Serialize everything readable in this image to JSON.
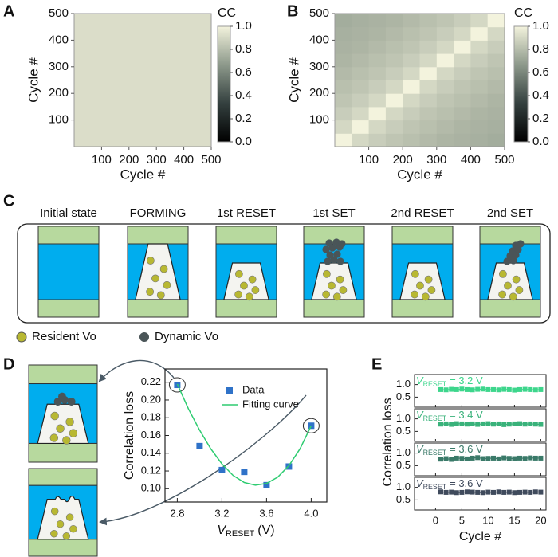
{
  "chart_data": [
    {
      "type": "heatmap",
      "panel": "A",
      "xlabel": "Cycle #",
      "ylabel": "Cycle #",
      "xlim": [
        0,
        500
      ],
      "ylim": [
        0,
        500
      ],
      "xticks": [
        100,
        200,
        300,
        400,
        500
      ],
      "yticks": [
        100,
        200,
        300,
        400,
        500
      ],
      "values": [
        [
          0.92
        ]
      ],
      "colormap": [
        "#000000",
        "#34403f",
        "#8d998b",
        "#f3f3dd"
      ],
      "colorbar": {
        "label": "CC",
        "lim": [
          0,
          1
        ],
        "ticks": [
          {
            "value": 0,
            "label": "0.0"
          },
          0.2,
          0.4,
          0.6,
          0.8,
          {
            "value": 1,
            "label": "1.0"
          }
        ]
      }
    },
    {
      "type": "heatmap",
      "panel": "B",
      "xlabel": "Cycle #",
      "ylabel": "Cycle #",
      "xlim": [
        0,
        500
      ],
      "ylim": [
        0,
        500
      ],
      "xticks": [
        100,
        200,
        300,
        400,
        500
      ],
      "yticks": [
        100,
        200,
        300,
        400,
        500
      ],
      "values": [
        [
          1.0,
          0.9,
          0.86,
          0.83,
          0.81,
          0.79,
          0.77,
          0.76,
          0.75,
          0.74
        ],
        [
          0.9,
          1.0,
          0.9,
          0.86,
          0.83,
          0.81,
          0.79,
          0.77,
          0.76,
          0.75
        ],
        [
          0.86,
          0.9,
          1.0,
          0.9,
          0.86,
          0.83,
          0.81,
          0.79,
          0.77,
          0.76
        ],
        [
          0.83,
          0.86,
          0.9,
          1.0,
          0.9,
          0.86,
          0.83,
          0.81,
          0.79,
          0.77
        ],
        [
          0.81,
          0.83,
          0.86,
          0.9,
          1.0,
          0.9,
          0.86,
          0.83,
          0.81,
          0.79
        ],
        [
          0.79,
          0.81,
          0.83,
          0.86,
          0.9,
          1.0,
          0.9,
          0.86,
          0.83,
          0.81
        ],
        [
          0.77,
          0.79,
          0.81,
          0.83,
          0.86,
          0.9,
          1.0,
          0.9,
          0.86,
          0.83
        ],
        [
          0.76,
          0.77,
          0.79,
          0.81,
          0.83,
          0.86,
          0.9,
          1.0,
          0.9,
          0.86
        ],
        [
          0.75,
          0.76,
          0.77,
          0.79,
          0.81,
          0.83,
          0.86,
          0.9,
          1.0,
          0.9
        ],
        [
          0.74,
          0.75,
          0.76,
          0.77,
          0.79,
          0.81,
          0.83,
          0.86,
          0.9,
          1.0
        ]
      ],
      "colormap": [
        "#000000",
        "#34403f",
        "#8d998b",
        "#f3f3dd"
      ],
      "colorbar": {
        "label": "CC",
        "lim": [
          0,
          1
        ],
        "ticks": [
          {
            "value": 0,
            "label": "0.0"
          },
          0.2,
          0.4,
          0.6,
          0.8,
          {
            "value": 1,
            "label": "1.0"
          }
        ]
      }
    },
    {
      "type": "scatter",
      "panel": "D",
      "ylabel": "Correlation loss",
      "xlabel": {
        "symbol": "V",
        "subscript": "RESET",
        "unit": "(V)"
      },
      "xlim": [
        2.69,
        4.14
      ],
      "ylim": [
        0.085,
        0.235
      ],
      "xticks": [
        2.8,
        3.2,
        3.6,
        {
          "value": 4,
          "label": "4.0"
        }
      ],
      "yticks": [
        {
          "value": 0.1,
          "label": "0.10"
        },
        0.12,
        0.14,
        0.16,
        0.18,
        {
          "value": 0.2,
          "label": "0.20"
        },
        0.22
      ],
      "series": [
        {
          "name": "Data",
          "type": "scatter",
          "color": "#2f72c8",
          "x": [
            2.8,
            3.0,
            3.2,
            3.4,
            3.6,
            3.8,
            4.0
          ],
          "values": [
            0.217,
            0.148,
            0.121,
            0.119,
            0.104,
            0.125,
            0.171
          ]
        },
        {
          "name": "Fitting curve",
          "type": "line",
          "color": "#2ecc71",
          "x": [
            2.8,
            2.9,
            3.0,
            3.1,
            3.2,
            3.3,
            3.4,
            3.5,
            3.6,
            3.7,
            3.8,
            3.9,
            4.0
          ],
          "values": [
            0.218,
            0.19,
            0.166,
            0.145,
            0.128,
            0.115,
            0.107,
            0.104,
            0.106,
            0.113,
            0.126,
            0.145,
            0.171
          ]
        }
      ]
    },
    {
      "type": "line",
      "panel": "E",
      "ylabel": "Correlation loss",
      "xlabel": "Cycle #",
      "xlim": [
        -4,
        21
      ],
      "xticks": [
        0,
        5,
        10,
        15,
        20
      ],
      "ylim": [
        0.1,
        1.4
      ],
      "yticks": [
        0.5,
        {
          "value": 1,
          "label": "1.0"
        }
      ],
      "x": [
        1,
        2,
        3,
        4,
        5,
        6,
        7,
        8,
        9,
        10,
        11,
        12,
        13,
        14,
        15,
        16,
        17,
        18,
        19,
        20
      ],
      "series": [
        {
          "name": {
            "symbol": "V",
            "subscript": "RESET",
            "text": "= 3.2 V"
          },
          "color": "#3dd68c",
          "values": [
            0.8,
            0.79,
            0.81,
            0.8,
            0.82,
            0.8,
            0.79,
            0.81,
            0.82,
            0.8,
            0.8,
            0.79,
            0.81,
            0.8,
            0.78,
            0.8,
            0.81,
            0.8,
            0.79,
            0.8
          ]
        },
        {
          "name": {
            "symbol": "V",
            "subscript": "RESET",
            "text": "= 3.4 V"
          },
          "color": "#39b27a",
          "values": [
            0.79,
            0.8,
            0.78,
            0.81,
            0.8,
            0.79,
            0.8,
            0.78,
            0.8,
            0.81,
            0.79,
            0.8,
            0.77,
            0.79,
            0.8,
            0.81,
            0.79,
            0.8,
            0.79,
            0.78
          ]
        },
        {
          "name": {
            "symbol": "V",
            "subscript": "RESET",
            "text": "= 3.6 V"
          },
          "color": "#3a7a69",
          "values": [
            0.76,
            0.78,
            0.75,
            0.8,
            0.79,
            0.77,
            0.8,
            0.82,
            0.78,
            0.79,
            0.8,
            0.77,
            0.81,
            0.79,
            0.78,
            0.8,
            0.79,
            0.81,
            0.8,
            0.8
          ]
        },
        {
          "name": {
            "symbol": "V",
            "subscript": "RESET",
            "text": "= 3.6 V"
          },
          "color": "#3f4a5c",
          "values": [
            0.82,
            0.8,
            0.81,
            0.79,
            0.8,
            0.82,
            0.81,
            0.8,
            0.79,
            0.81,
            0.8,
            0.82,
            0.8,
            0.81,
            0.79,
            0.8,
            0.81,
            0.8,
            0.82,
            0.81
          ]
        }
      ]
    }
  ],
  "diagram": {
    "panel": "C",
    "states": [
      "Initial state",
      "FORMING",
      "1st RESET",
      "1st SET",
      "2nd RESET",
      "2nd SET"
    ],
    "legend": [
      "Resident Vo",
      "Dynamic Vo"
    ]
  }
}
